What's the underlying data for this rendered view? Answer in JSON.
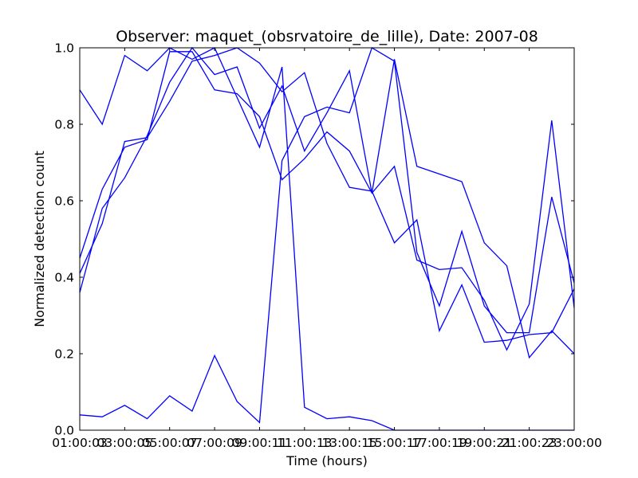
{
  "chart_data": {
    "type": "line",
    "title": "Observer: maquet_(obsrvatoire_de_lille), Date: 2007-08",
    "xlabel": "Time (hours)",
    "ylabel": "Normalized detection count",
    "x": [
      1,
      2,
      3,
      4,
      5,
      6,
      7,
      8,
      9,
      10,
      11,
      12,
      13,
      14,
      15,
      16,
      17,
      18,
      19,
      20,
      21,
      22,
      23
    ],
    "xlim": [
      1,
      23
    ],
    "ylim": [
      0,
      1.0
    ],
    "x_tick_values": [
      1,
      3,
      5,
      7,
      9,
      11,
      13,
      15,
      17,
      19,
      21,
      23
    ],
    "x_tick_labels": [
      "01:00:03",
      "03:00:05",
      "05:00:07",
      "07:00:09",
      "09:00:11",
      "11:00:13",
      "13:00:15",
      "15:00:17",
      "17:00:19",
      "19:00:21",
      "21:00:23",
      "23:00:00"
    ],
    "y_tick_values": [
      0.0,
      0.2,
      0.4,
      0.6,
      0.8,
      1.0
    ],
    "y_tick_labels": [
      "0.0",
      "0.2",
      "0.4",
      "0.6",
      "0.8",
      "1.0"
    ],
    "grid": false,
    "legend": false,
    "series_color": "#0000ff",
    "series": [
      {
        "values": [
          0.89,
          0.8,
          0.98,
          0.94,
          1.0,
          0.97,
          1.0,
          0.87,
          0.74,
          0.95,
          0.06,
          0.03,
          0.035,
          0.025,
          0.0,
          0.0,
          0.0,
          0.0,
          0.0,
          0.0,
          0.0,
          0.0,
          0.0
        ]
      },
      {
        "values": [
          0.36,
          0.58,
          0.66,
          0.77,
          0.91,
          1.0,
          0.93,
          0.95,
          0.79,
          0.9,
          0.73,
          0.83,
          0.94,
          0.62,
          0.97,
          0.69,
          0.67,
          0.65,
          0.49,
          0.43,
          0.19,
          0.26,
          0.2
        ]
      },
      {
        "values": [
          0.45,
          0.63,
          0.74,
          0.76,
          0.99,
          0.99,
          0.89,
          0.88,
          0.82,
          0.655,
          0.71,
          0.78,
          0.73,
          0.62,
          0.69,
          0.445,
          0.42,
          0.425,
          0.34,
          0.21,
          0.33,
          0.81,
          0.32
        ]
      },
      {
        "values": [
          0.41,
          0.54,
          0.755,
          0.765,
          0.86,
          0.965,
          0.98,
          1.0,
          0.96,
          0.885,
          0.935,
          0.75,
          0.635,
          0.625,
          0.49,
          0.55,
          0.26,
          0.38,
          0.23,
          0.235,
          0.25,
          0.255,
          0.37
        ]
      },
      {
        "values": [
          0.04,
          0.035,
          0.065,
          0.03,
          0.09,
          0.05,
          0.195,
          0.075,
          0.02,
          0.705,
          0.82,
          0.845,
          0.83,
          1.0,
          0.965,
          0.465,
          0.325,
          0.52,
          0.325,
          0.255,
          0.255,
          0.61,
          0.385
        ]
      }
    ]
  }
}
